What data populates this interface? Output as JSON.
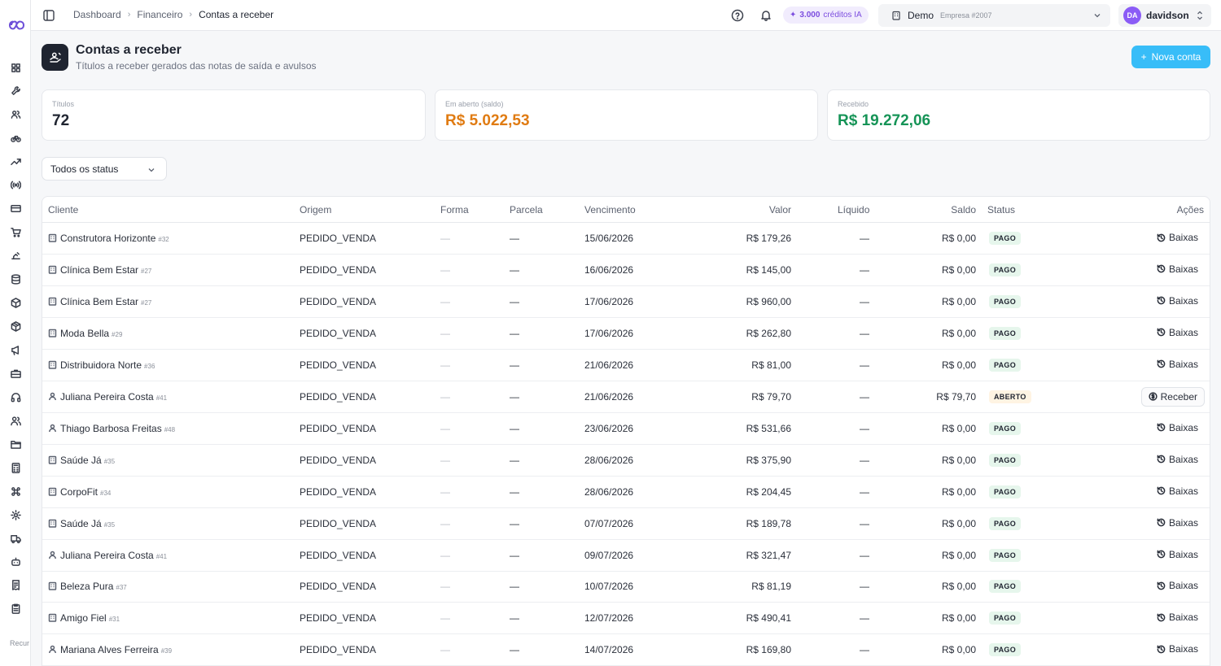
{
  "sidebar": {
    "logo_icon": "infinity-logo-icon",
    "items": [
      {
        "icon": "grid-icon"
      },
      {
        "icon": "wrench-icon"
      },
      {
        "icon": "users-icon"
      },
      {
        "icon": "bike-icon"
      },
      {
        "icon": "trending-up-icon"
      },
      {
        "icon": "radio-icon"
      },
      {
        "icon": "credit-card-icon"
      },
      {
        "icon": "cart-icon"
      },
      {
        "icon": "scale-icon"
      },
      {
        "icon": "database-icon"
      },
      {
        "icon": "box-icon"
      },
      {
        "icon": "package-icon"
      },
      {
        "icon": "megaphone-icon"
      },
      {
        "icon": "briefcase-icon"
      },
      {
        "icon": "headphones-icon"
      },
      {
        "icon": "team-icon"
      },
      {
        "icon": "folder-icon"
      },
      {
        "icon": "calculator-icon"
      },
      {
        "icon": "command-icon"
      },
      {
        "icon": "gear-icon"
      },
      {
        "icon": "truck-icon"
      },
      {
        "icon": "bot-icon"
      },
      {
        "icon": "receipt-icon"
      },
      {
        "icon": "clipboard-icon"
      }
    ],
    "footer_text": "Recur avanç"
  },
  "topbar": {
    "breadcrumb": [
      "Dashboard",
      "Financeiro",
      "Contas a receber"
    ],
    "credits_amount": "3.000",
    "credits_label": "créditos IA",
    "company_name": "Demo",
    "company_sub": "Empresa #2007",
    "user_initials": "DA",
    "user_name": "davidson"
  },
  "header": {
    "title": "Contas a receber",
    "subtitle": "Títulos a receber gerados das notas de saída e avulsos",
    "new_button": "Nova conta"
  },
  "stats": {
    "titulos_label": "Títulos",
    "titulos_value": "72",
    "aberto_label": "Em aberto (saldo)",
    "aberto_value": "R$ 5.022,53",
    "recebido_label": "Recebido",
    "recebido_value": "R$ 19.272,06"
  },
  "colors": {
    "accent": "#38bdf8",
    "aberto": "#e07b12",
    "recebido": "#169457"
  },
  "filter": {
    "status": "Todos os status"
  },
  "table": {
    "headers": [
      "Cliente",
      "Origem",
      "Forma",
      "Parcela",
      "Vencimento",
      "Valor",
      "Líquido",
      "Saldo",
      "Status",
      "Ações"
    ],
    "rows": [
      {
        "type": "empresa",
        "cliente": "Construtora Horizonte",
        "id": "#32",
        "origem": "PEDIDO_VENDA",
        "forma": "—",
        "parcela": "—",
        "vencimento": "15/06/2026",
        "valor": "R$ 179,26",
        "liquido": "—",
        "saldo": "R$ 0,00",
        "status": "PAGO",
        "acao": "Baixas"
      },
      {
        "type": "empresa",
        "cliente": "Clínica Bem Estar",
        "id": "#27",
        "origem": "PEDIDO_VENDA",
        "forma": "—",
        "parcela": "—",
        "vencimento": "16/06/2026",
        "valor": "R$ 145,00",
        "liquido": "—",
        "saldo": "R$ 0,00",
        "status": "PAGO",
        "acao": "Baixas"
      },
      {
        "type": "empresa",
        "cliente": "Clínica Bem Estar",
        "id": "#27",
        "origem": "PEDIDO_VENDA",
        "forma": "—",
        "parcela": "—",
        "vencimento": "17/06/2026",
        "valor": "R$ 960,00",
        "liquido": "—",
        "saldo": "R$ 0,00",
        "status": "PAGO",
        "acao": "Baixas"
      },
      {
        "type": "empresa",
        "cliente": "Moda Bella",
        "id": "#29",
        "origem": "PEDIDO_VENDA",
        "forma": "—",
        "parcela": "—",
        "vencimento": "17/06/2026",
        "valor": "R$ 262,80",
        "liquido": "—",
        "saldo": "R$ 0,00",
        "status": "PAGO",
        "acao": "Baixas"
      },
      {
        "type": "empresa",
        "cliente": "Distribuidora Norte",
        "id": "#36",
        "origem": "PEDIDO_VENDA",
        "forma": "—",
        "parcela": "—",
        "vencimento": "21/06/2026",
        "valor": "R$ 81,00",
        "liquido": "—",
        "saldo": "R$ 0,00",
        "status": "PAGO",
        "acao": "Baixas"
      },
      {
        "type": "pessoa",
        "cliente": "Juliana Pereira Costa",
        "id": "#41",
        "origem": "PEDIDO_VENDA",
        "forma": "—",
        "parcela": "—",
        "vencimento": "21/06/2026",
        "valor": "R$ 79,70",
        "liquido": "—",
        "saldo": "R$ 79,70",
        "status": "ABERTO",
        "acao": "Receber"
      },
      {
        "type": "pessoa",
        "cliente": "Thiago Barbosa Freitas",
        "id": "#48",
        "origem": "PEDIDO_VENDA",
        "forma": "—",
        "parcela": "—",
        "vencimento": "23/06/2026",
        "valor": "R$ 531,66",
        "liquido": "—",
        "saldo": "R$ 0,00",
        "status": "PAGO",
        "acao": "Baixas"
      },
      {
        "type": "empresa",
        "cliente": "Saúde Já",
        "id": "#35",
        "origem": "PEDIDO_VENDA",
        "forma": "—",
        "parcela": "—",
        "vencimento": "28/06/2026",
        "valor": "R$ 375,90",
        "liquido": "—",
        "saldo": "R$ 0,00",
        "status": "PAGO",
        "acao": "Baixas"
      },
      {
        "type": "empresa",
        "cliente": "CorpoFit",
        "id": "#34",
        "origem": "PEDIDO_VENDA",
        "forma": "—",
        "parcela": "—",
        "vencimento": "28/06/2026",
        "valor": "R$ 204,45",
        "liquido": "—",
        "saldo": "R$ 0,00",
        "status": "PAGO",
        "acao": "Baixas"
      },
      {
        "type": "empresa",
        "cliente": "Saúde Já",
        "id": "#35",
        "origem": "PEDIDO_VENDA",
        "forma": "—",
        "parcela": "—",
        "vencimento": "07/07/2026",
        "valor": "R$ 189,78",
        "liquido": "—",
        "saldo": "R$ 0,00",
        "status": "PAGO",
        "acao": "Baixas"
      },
      {
        "type": "pessoa",
        "cliente": "Juliana Pereira Costa",
        "id": "#41",
        "origem": "PEDIDO_VENDA",
        "forma": "—",
        "parcela": "—",
        "vencimento": "09/07/2026",
        "valor": "R$ 321,47",
        "liquido": "—",
        "saldo": "R$ 0,00",
        "status": "PAGO",
        "acao": "Baixas"
      },
      {
        "type": "empresa",
        "cliente": "Beleza Pura",
        "id": "#37",
        "origem": "PEDIDO_VENDA",
        "forma": "—",
        "parcela": "—",
        "vencimento": "10/07/2026",
        "valor": "R$ 81,19",
        "liquido": "—",
        "saldo": "R$ 0,00",
        "status": "PAGO",
        "acao": "Baixas"
      },
      {
        "type": "empresa",
        "cliente": "Amigo Fiel",
        "id": "#31",
        "origem": "PEDIDO_VENDA",
        "forma": "—",
        "parcela": "—",
        "vencimento": "12/07/2026",
        "valor": "R$ 490,41",
        "liquido": "—",
        "saldo": "R$ 0,00",
        "status": "PAGO",
        "acao": "Baixas"
      },
      {
        "type": "pessoa",
        "cliente": "Mariana Alves Ferreira",
        "id": "#39",
        "origem": "PEDIDO_VENDA",
        "forma": "—",
        "parcela": "—",
        "vencimento": "14/07/2026",
        "valor": "R$ 169,80",
        "liquido": "—",
        "saldo": "R$ 0,00",
        "status": "PAGO",
        "acao": "Baixas"
      }
    ]
  }
}
